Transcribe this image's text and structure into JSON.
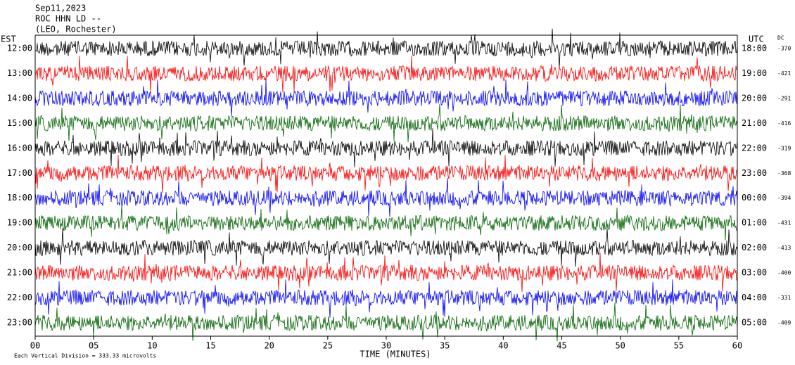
{
  "chart_data": {
    "type": "helicorder",
    "title_lines": [
      "Sep11,2023",
      "ROC HHN LD --",
      "(LEO, Rochester)"
    ],
    "left_label": "EST",
    "right_label": "UTC",
    "dc_label": "DC",
    "x_label": "TIME (MINUTES)",
    "note": "Each Vertical Division =  333.33 microvolts",
    "xlim": [
      0,
      60
    ],
    "xticks": [
      {
        "value": 0,
        "label": "00"
      },
      {
        "value": 5,
        "label": "05"
      },
      10,
      15,
      20,
      25,
      30,
      35,
      40,
      45,
      50,
      55,
      60
    ],
    "rows": [
      {
        "est": "12:00",
        "utc": "18:00",
        "dc": -370,
        "color": "#000000"
      },
      {
        "est": "13:00",
        "utc": "19:00",
        "dc": -421,
        "color": "#ff0000"
      },
      {
        "est": "14:00",
        "utc": "20:00",
        "dc": -291,
        "color": "#0000ff"
      },
      {
        "est": "15:00",
        "utc": "21:00",
        "dc": -416,
        "color": "#006400"
      },
      {
        "est": "16:00",
        "utc": "22:00",
        "dc": -319,
        "color": "#000000"
      },
      {
        "est": "17:00",
        "utc": "23:00",
        "dc": -368,
        "color": "#ff0000"
      },
      {
        "est": "18:00",
        "utc": "00:00",
        "dc": -394,
        "color": "#0000ff"
      },
      {
        "est": "19:00",
        "utc": "01:00",
        "dc": -431,
        "color": "#006400"
      },
      {
        "est": "20:00",
        "utc": "02:00",
        "dc": -413,
        "color": "#000000"
      },
      {
        "est": "21:00",
        "utc": "03:00",
        "dc": -400,
        "color": "#ff0000"
      },
      {
        "est": "22:00",
        "utc": "04:00",
        "dc": -331,
        "color": "#0000ff"
      },
      {
        "est": "23:00",
        "utc": "05:00",
        "dc": -409,
        "color": "#006400"
      }
    ]
  }
}
